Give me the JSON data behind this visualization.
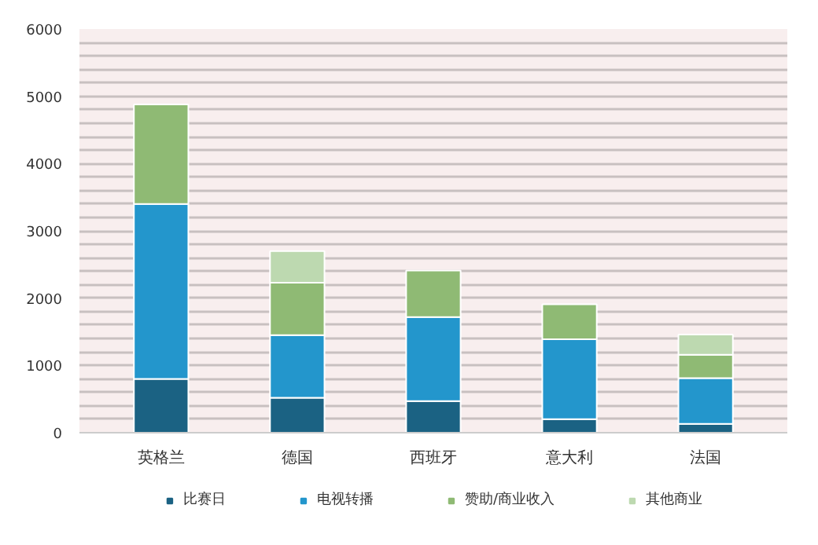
{
  "chart_data": {
    "type": "bar",
    "stacked": true,
    "categories": [
      "英格兰",
      "德国",
      "西班牙",
      "意大利",
      "法国"
    ],
    "series": [
      {
        "name": "比赛日",
        "color": "#1b6283",
        "values": [
          800,
          520,
          470,
          200,
          130
        ]
      },
      {
        "name": "电视转播",
        "color": "#2396cc",
        "values": [
          2600,
          930,
          1250,
          1190,
          680
        ]
      },
      {
        "name": "赞助/商业收入",
        "color": "#8fba74",
        "values": [
          1480,
          780,
          690,
          520,
          350
        ]
      },
      {
        "name": "其他商业",
        "color": "#bdd9b0",
        "values": [
          null,
          470,
          null,
          null,
          300
        ]
      }
    ],
    "ylim": [
      0,
      6000
    ],
    "yticks": [
      0,
      {
        "value": 200,
        "label": null
      },
      {
        "value": 400,
        "label": null
      },
      {
        "value": 600,
        "label": null
      },
      {
        "value": 800,
        "label": null
      },
      1000,
      {
        "value": 1200,
        "label": null
      },
      {
        "value": 1400,
        "label": null
      },
      {
        "value": 1600,
        "label": null
      },
      {
        "value": 1800,
        "label": null
      },
      2000,
      {
        "value": 2200,
        "label": null
      },
      {
        "value": 2400,
        "label": null
      },
      {
        "value": 2600,
        "label": null
      },
      {
        "value": 2800,
        "label": null
      },
      3000,
      {
        "value": 3200,
        "label": null
      },
      {
        "value": 3400,
        "label": null
      },
      {
        "value": 3600,
        "label": null
      },
      {
        "value": 3800,
        "label": null
      },
      4000,
      {
        "value": 4200,
        "label": null
      },
      {
        "value": 4400,
        "label": null
      },
      {
        "value": 4600,
        "label": null
      },
      {
        "value": 4800,
        "label": null
      },
      5000,
      {
        "value": 5200,
        "label": null
      },
      {
        "value": 5400,
        "label": null
      },
      {
        "value": 5600,
        "label": null
      },
      {
        "value": 5800,
        "label": null
      },
      6000
    ],
    "grid": "y",
    "legend": "bottom"
  }
}
